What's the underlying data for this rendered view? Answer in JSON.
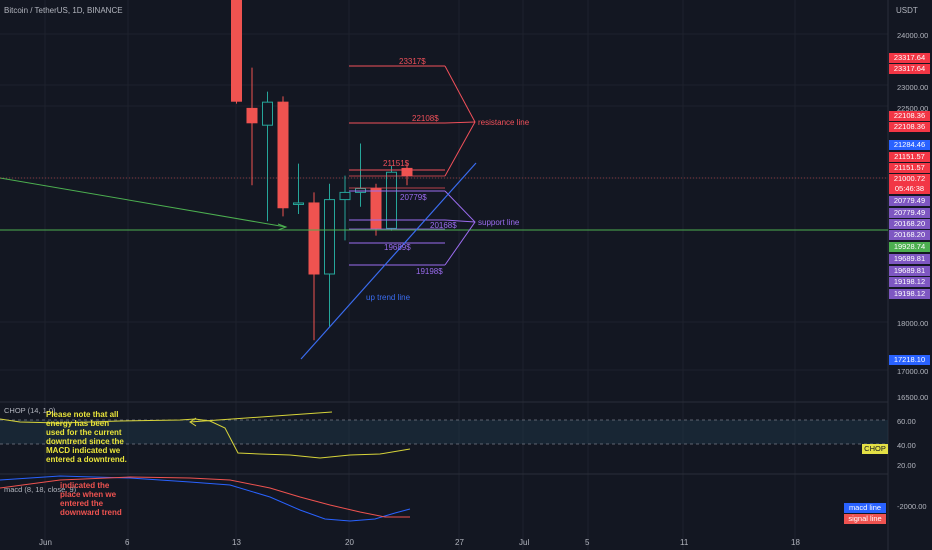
{
  "header": {
    "symbol_title": "Bitcoin / TetherUS, 1D, BINANCE",
    "price_unit": "USDT"
  },
  "colors": {
    "background": "#131722",
    "candle_up": "#26a69a",
    "candle_down": "#ef5350",
    "resistance": "#f0505a",
    "support": "#9b6cf0",
    "trend": "#3a6cf0",
    "green_line": "#4caf50",
    "chop": "#d7d43a",
    "macd": "#2962ff",
    "signal": "#ef5350"
  },
  "chart_data": [
    {
      "type": "candlestick",
      "title": "Bitcoin / TetherUS, 1D, BINANCE",
      "ylabel": "USDT",
      "yscale": "linear",
      "ylim": [
        16500,
        24500
      ],
      "y_ticks": [
        "24000.00",
        "23000.00",
        "22500.00",
        "21000.00",
        "18000.00",
        "17000.00",
        "16500.00"
      ],
      "x_ticks": [
        "Jun",
        "6",
        "13",
        "20",
        "27",
        "Jul",
        "5",
        "11",
        "18"
      ],
      "candles": [
        {
          "date": "Jun 13",
          "o": 26000,
          "h": 26000,
          "l": 22550,
          "c": 22600
        },
        {
          "date": "Jun 14",
          "o": 22450,
          "h": 23300,
          "l": 20850,
          "c": 22150
        },
        {
          "date": "Jun 15",
          "o": 22100,
          "h": 22800,
          "l": 20100,
          "c": 22580
        },
        {
          "date": "Jun 16",
          "o": 22580,
          "h": 22700,
          "l": 20200,
          "c": 20380
        },
        {
          "date": "Jun 17",
          "o": 20450,
          "h": 21300,
          "l": 20250,
          "c": 20480
        },
        {
          "date": "Jun 18",
          "o": 20480,
          "h": 20700,
          "l": 17620,
          "c": 19000
        },
        {
          "date": "Jun 19",
          "o": 19000,
          "h": 20880,
          "l": 17900,
          "c": 20550
        },
        {
          "date": "Jun 20",
          "o": 20550,
          "h": 21050,
          "l": 19700,
          "c": 20700
        },
        {
          "date": "Jun 21",
          "o": 20700,
          "h": 21720,
          "l": 20400,
          "c": 20780
        },
        {
          "date": "Jun 22",
          "o": 20780,
          "h": 20880,
          "l": 19800,
          "c": 19950
        },
        {
          "date": "Jun 23",
          "o": 19950,
          "h": 21250,
          "l": 19900,
          "c": 21120
        },
        {
          "date": "Jun 24",
          "o": 21200,
          "h": 21310,
          "l": 20850,
          "c": 21050
        }
      ],
      "annotations": {
        "resistance_levels": [
          "23317$",
          "22108$",
          "21151$"
        ],
        "support_levels": [
          "20779$",
          "20168$",
          "19689$",
          "19198$"
        ],
        "resistance_label": "resistance line",
        "support_label": "support line",
        "trend_label": "up trend line"
      },
      "price_tags": [
        {
          "text": "23317.64",
          "kind": "resistance"
        },
        {
          "text": "23317.64",
          "kind": "resistance"
        },
        {
          "text": "22108.36",
          "kind": "resistance"
        },
        {
          "text": "22108.36",
          "kind": "resistance"
        },
        {
          "text": "21284.46",
          "kind": "trend"
        },
        {
          "text": "21151.57",
          "kind": "resistance"
        },
        {
          "text": "21151.57",
          "kind": "resistance"
        },
        {
          "text": "21000.72",
          "kind": "resistance"
        },
        {
          "text": "05:46:38",
          "kind": "resistance"
        },
        {
          "text": "20779.49",
          "kind": "support"
        },
        {
          "text": "20779.49",
          "kind": "support"
        },
        {
          "text": "20168.20",
          "kind": "support"
        },
        {
          "text": "20168.20",
          "kind": "support"
        },
        {
          "text": "19928.74",
          "kind": "green"
        },
        {
          "text": "19689.81",
          "kind": "support"
        },
        {
          "text": "19689.81",
          "kind": "support"
        },
        {
          "text": "19198.12",
          "kind": "support"
        },
        {
          "text": "19198.12",
          "kind": "support"
        },
        {
          "text": "17218.10",
          "kind": "trend"
        }
      ]
    },
    {
      "type": "line",
      "name": "CHOP (14, 1.0)",
      "y_ticks": [
        "60.00",
        "40.00",
        "20.00"
      ],
      "tag": "CHOP",
      "note": "Please note that all energy has been used for the current downtrend since the MACD indicated we entered a downtrend."
    },
    {
      "type": "line",
      "name": "macd (8, 18, close, 9)",
      "y_ticks": [
        "-2000.00"
      ],
      "legend": [
        "macd line",
        "signal line"
      ],
      "note": "indicated the place when we entered the downward trend"
    }
  ]
}
